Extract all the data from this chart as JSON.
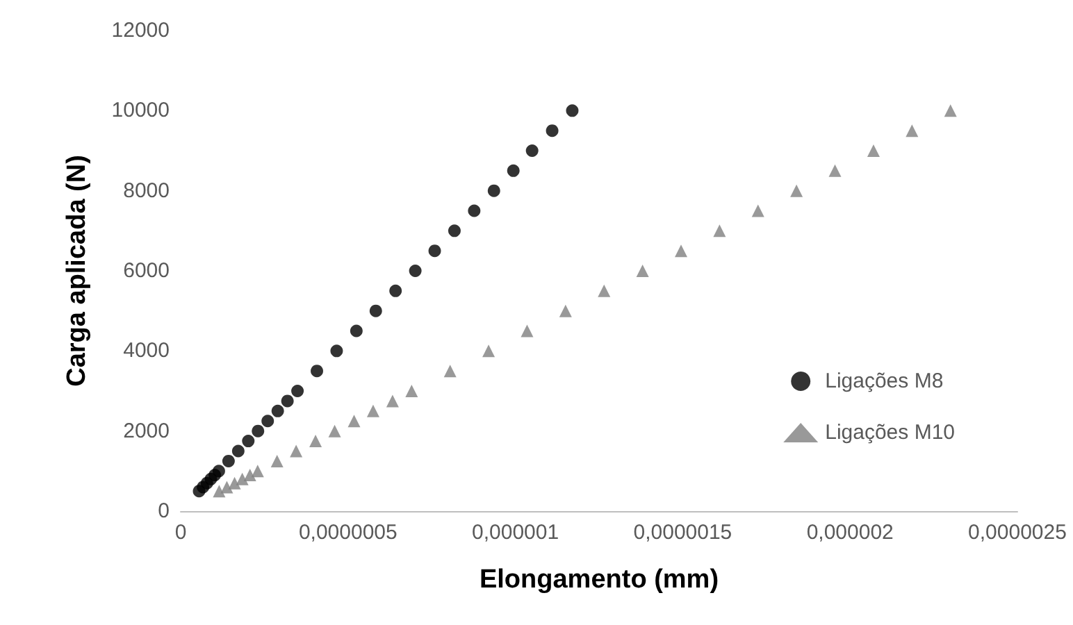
{
  "chart_data": {
    "type": "scatter",
    "xlabel": "Elongamento (mm)",
    "ylabel": "Carga aplicada (N)",
    "xlim": [
      0,
      2.5e-06
    ],
    "xticks": [
      0,
      {
        "value": 5e-07,
        "label": "0,0000005"
      },
      {
        "value": 1e-06,
        "label": "0,000001"
      },
      {
        "value": 1.5e-06,
        "label": "0,0000015"
      },
      {
        "value": 2e-06,
        "label": "0,000002"
      },
      {
        "value": 2.5e-06,
        "label": "0,0000025"
      }
    ],
    "ylim": [
      0,
      12000
    ],
    "yticks": [
      0,
      2000,
      4000,
      6000,
      8000,
      10000,
      12000
    ],
    "grid": false,
    "legend": "right",
    "series": [
      {
        "name": "Ligações M8",
        "color": "#000000",
        "marker": "circle",
        "x": [
          5.5e-08,
          6.67e-08,
          7.85e-08,
          9.02e-08,
          1.02e-07,
          1.14e-07,
          1.43e-07,
          1.72e-07,
          2.02e-07,
          2.31e-07,
          2.6e-07,
          2.9e-07,
          3.19e-07,
          3.49e-07,
          4.07e-07,
          4.66e-07,
          5.25e-07,
          5.83e-07,
          6.42e-07,
          7.01e-07,
          7.59e-07,
          8.18e-07,
          8.77e-07,
          9.36e-07,
          9.94e-07,
          1.05e-06,
          1.11e-06,
          1.17e-06
        ],
        "values": [
          500,
          600,
          700,
          800,
          900,
          1000,
          1250,
          1500,
          1750,
          2000,
          2250,
          2500,
          2750,
          3000,
          3500,
          4000,
          4500,
          5000,
          5500,
          6000,
          6500,
          7000,
          7500,
          8000,
          8500,
          9000,
          9500,
          10000
        ]
      },
      {
        "name": "Ligações M10",
        "color": "#7f7f7f",
        "marker": "triangle",
        "x": [
          1.15e-07,
          1.38e-07,
          1.61e-07,
          1.84e-07,
          2.07e-07,
          2.3e-07,
          2.88e-07,
          3.45e-07,
          4.03e-07,
          4.6e-07,
          5.18e-07,
          5.75e-07,
          6.33e-07,
          6.9e-07,
          8.05e-07,
          9.2e-07,
          1.035e-06,
          1.15e-06,
          1.265e-06,
          1.38e-06,
          1.495e-06,
          1.61e-06,
          1.725e-06,
          1.84e-06,
          1.955e-06,
          2.07e-06,
          2.185e-06,
          2.3e-06
        ],
        "values": [
          500,
          600,
          700,
          800,
          900,
          1000,
          1250,
          1500,
          1750,
          2000,
          2250,
          2500,
          2750,
          3000,
          3500,
          4000,
          4500,
          5000,
          5500,
          6000,
          6500,
          7000,
          7500,
          8000,
          8500,
          9000,
          9500,
          10000
        ]
      }
    ]
  }
}
